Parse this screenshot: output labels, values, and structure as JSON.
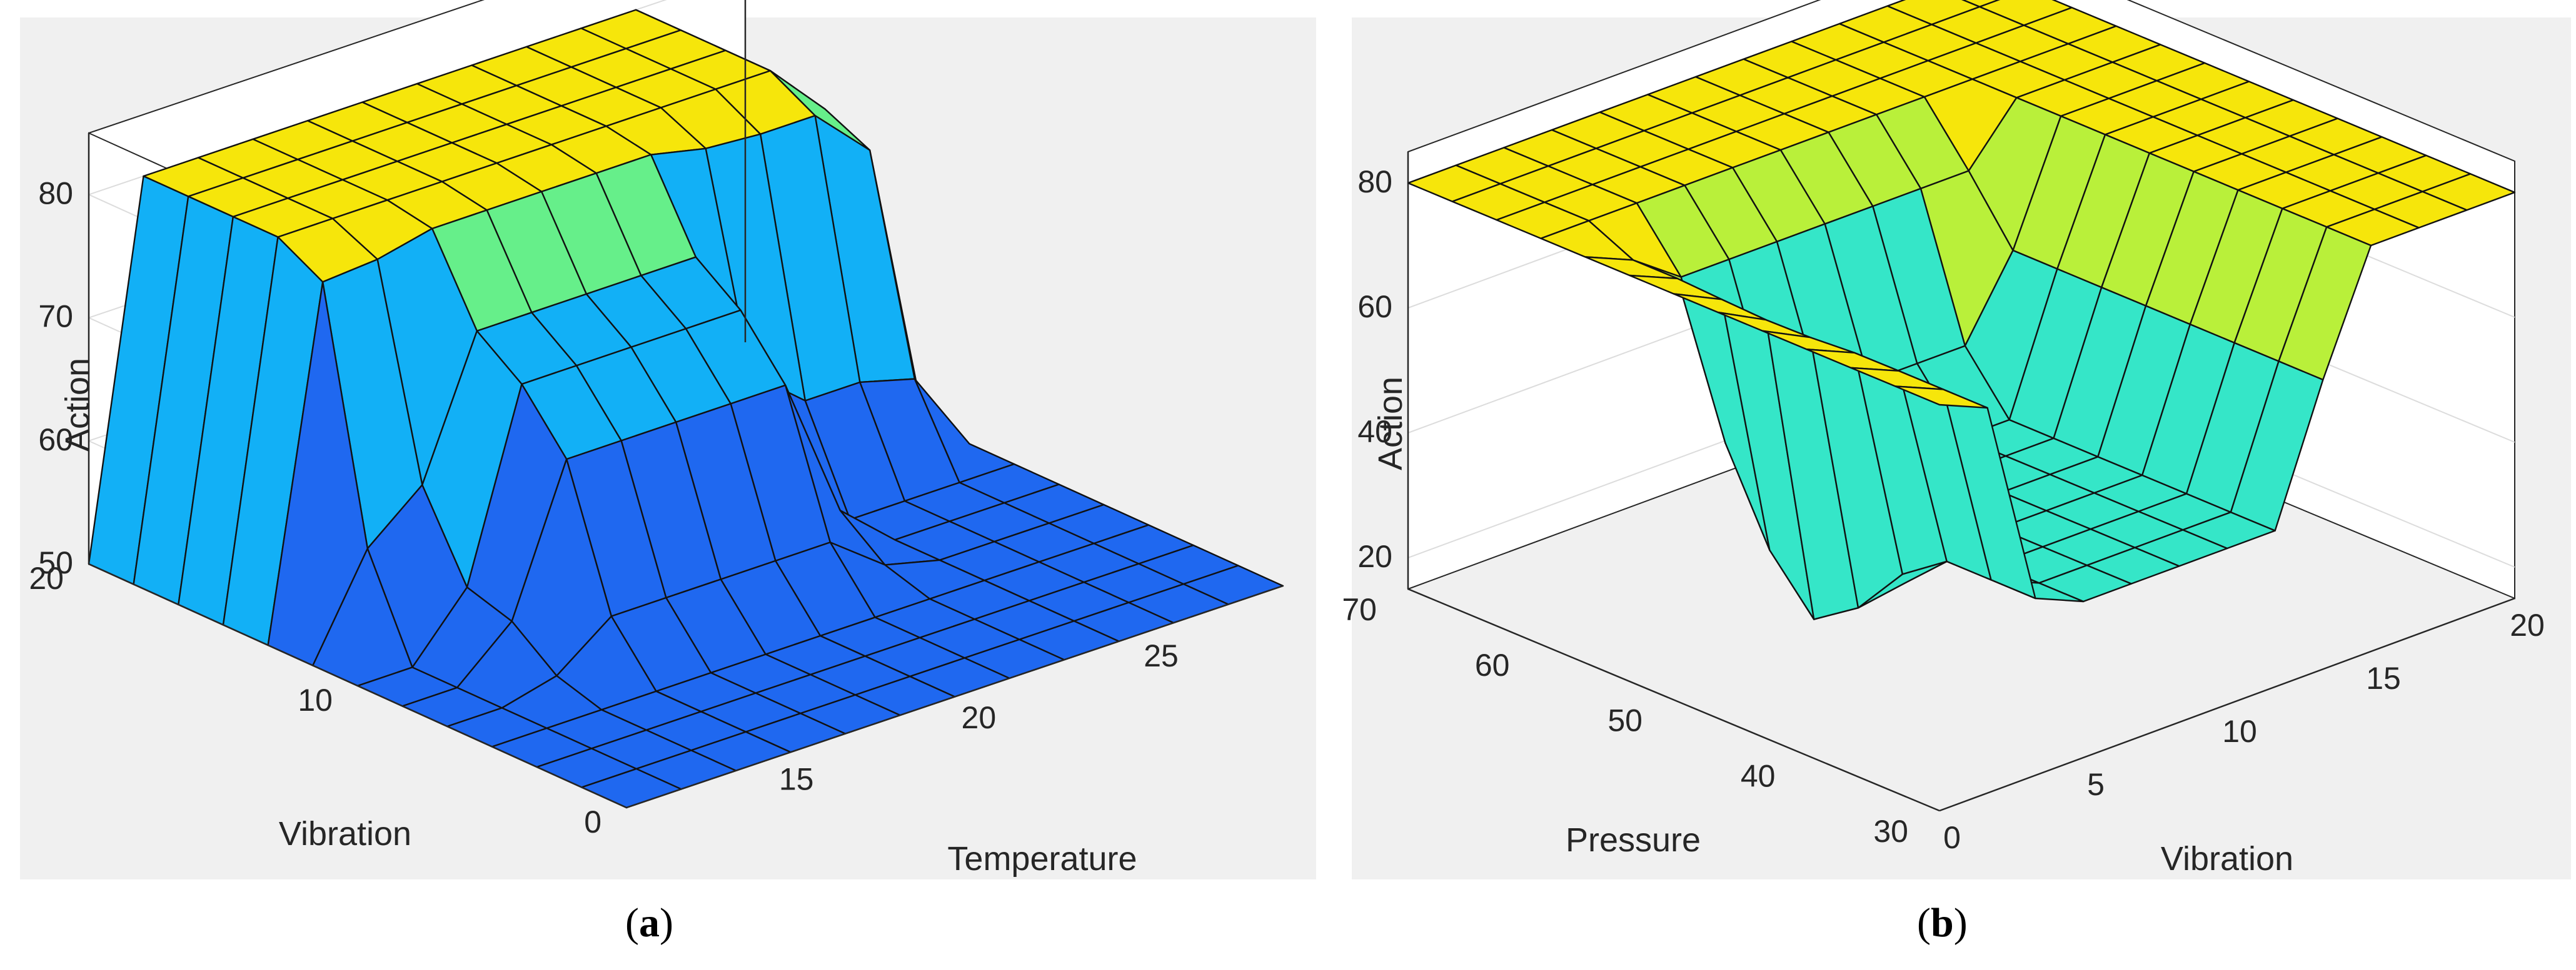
{
  "chart_data": [
    {
      "id": "a",
      "type": "surface",
      "caption": "a",
      "xlabel": "Temperature",
      "ylabel": "Vibration",
      "zlabel": "Action",
      "xlim": [
        10,
        28
      ],
      "ylim": [
        0,
        20
      ],
      "zlim": [
        50,
        85
      ],
      "xticks": [
        15,
        20,
        25
      ],
      "yticks": [
        0,
        10,
        20
      ],
      "zticks": [
        50,
        60,
        70,
        80
      ],
      "colors": {
        "low": "#1f68f0",
        "mid": "#12b0f6",
        "midhigh": "#66ef8a",
        "high": "#f6e60b"
      },
      "surface_description": "Action ~80 on a high plateau at Vibration > 12, ~70 at Temperature 14-22 with mid Vibration, 50 for low Vibration"
    },
    {
      "id": "b",
      "type": "surface",
      "caption": "b",
      "xlabel": "Vibration",
      "ylabel": "Pressure",
      "zlabel": "Action",
      "xlim": [
        0,
        20
      ],
      "ylim": [
        30,
        70
      ],
      "zlim": [
        15,
        85
      ],
      "xticks": [
        0,
        5,
        10,
        15,
        20
      ],
      "yticks": [
        30,
        40,
        50,
        60,
        70
      ],
      "zticks": [
        20,
        40,
        60,
        80
      ],
      "colors": {
        "low": "#15cfe8",
        "mid": "#35e6c8",
        "midhigh": "#b9f03a",
        "high": "#f6e60b"
      },
      "surface_description": "Action 80 plateau around the rim, 40 basin in the middle with a pit to ~20 at low Vibration / mid Pressure"
    }
  ],
  "captions": {
    "a": "a",
    "b": "b"
  }
}
